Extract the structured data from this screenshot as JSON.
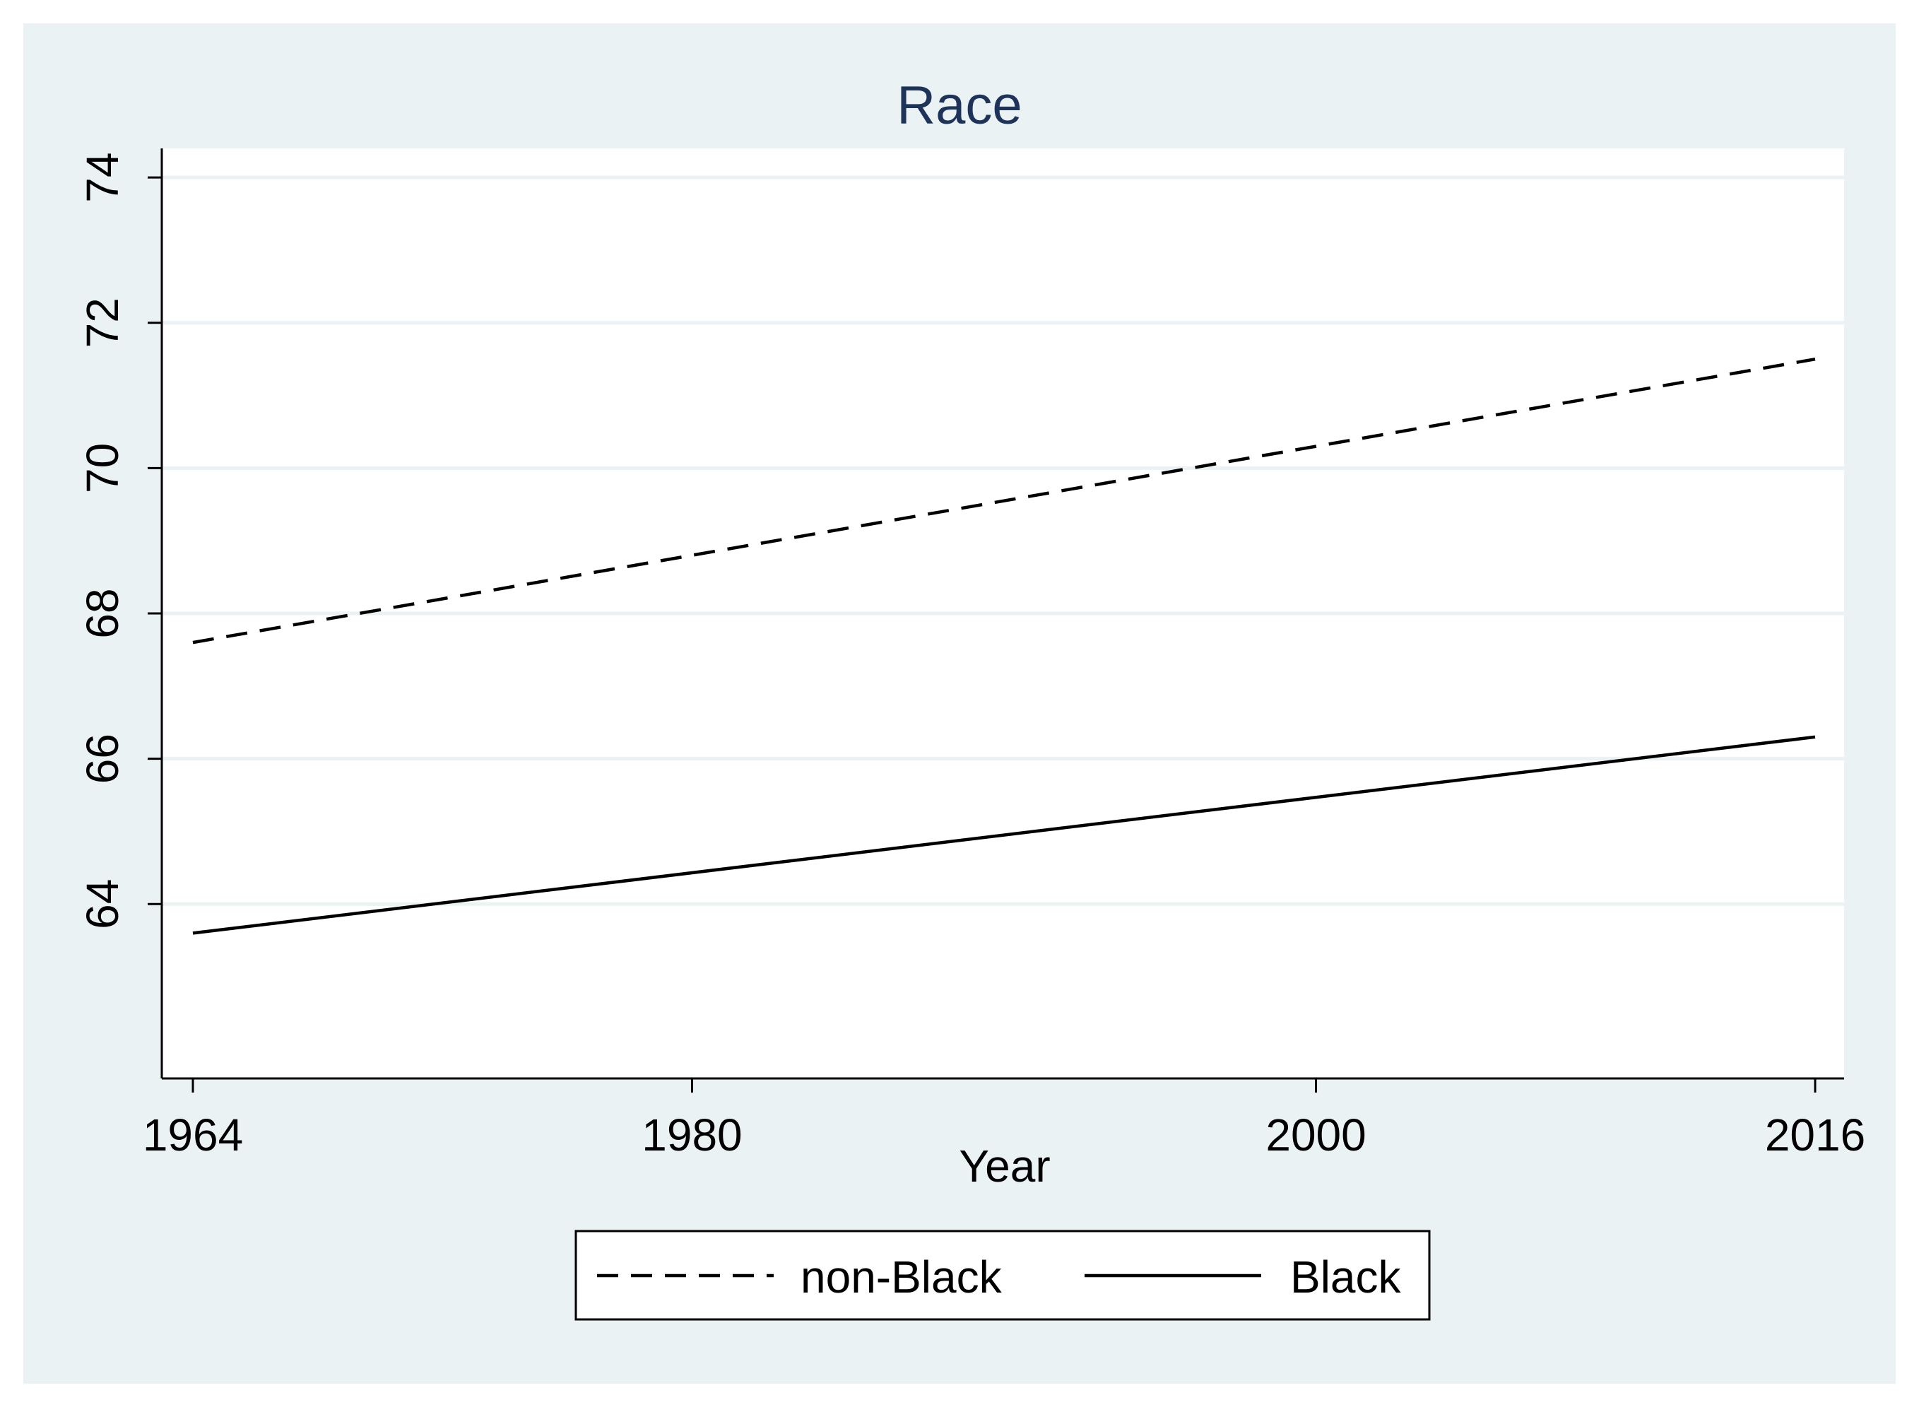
{
  "chart_data": {
    "type": "line",
    "title": "Race",
    "xlabel": "Year",
    "ylabel": "",
    "xlim": [
      1964,
      2016
    ],
    "ylim": [
      61.6,
      74.4
    ],
    "x_ticks": [
      "1964",
      "1980",
      "2000",
      "2016"
    ],
    "y_ticks": [
      "64",
      "66",
      "68",
      "70",
      "72",
      "74"
    ],
    "grid": true,
    "legend_position": "bottom",
    "colors": {
      "outer_background": "#eaf2f3",
      "plot_background": "#ffffff",
      "grid": "#eaf2f3",
      "line": "#000000",
      "title": "#1e3359"
    },
    "series": [
      {
        "name": "non-Black",
        "style": "dashed",
        "x": [
          1964,
          2016
        ],
        "y": [
          67.6,
          71.5
        ]
      },
      {
        "name": "Black",
        "style": "solid",
        "x": [
          1964,
          2016
        ],
        "y": [
          63.6,
          66.3
        ]
      }
    ]
  }
}
